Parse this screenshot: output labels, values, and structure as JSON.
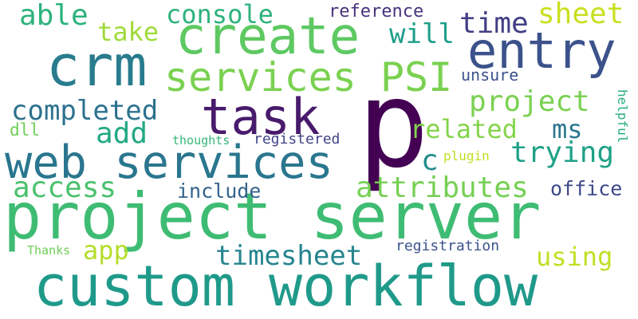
{
  "words": [
    {
      "text": "project server",
      "color": "#3fbc73"
    },
    {
      "text": "custom workflow",
      "color": "#1f9a8a"
    },
    {
      "text": "p",
      "color": "#440154"
    },
    {
      "text": "web services",
      "color": "#2a768e"
    },
    {
      "text": "task",
      "color": "#481a6c"
    },
    {
      "text": "create",
      "color": "#5ec962"
    },
    {
      "text": "crm",
      "color": "#287c8e"
    },
    {
      "text": "entry",
      "color": "#3b528b"
    },
    {
      "text": "services PSI",
      "color": "#7ad151"
    },
    {
      "text": "attributes",
      "color": "#75d054"
    },
    {
      "text": "completed",
      "color": "#2c728e"
    },
    {
      "text": "timesheet",
      "color": "#25858e"
    },
    {
      "text": "trying",
      "color": "#1fa187"
    },
    {
      "text": "related",
      "color": "#84d44b"
    },
    {
      "text": "project",
      "color": "#7ad151"
    },
    {
      "text": "access",
      "color": "#4ac16d"
    },
    {
      "text": "console",
      "color": "#2db27d"
    },
    {
      "text": "add",
      "color": "#22a884"
    },
    {
      "text": "able",
      "color": "#2db27d"
    },
    {
      "text": "take",
      "color": "#9fda3a"
    },
    {
      "text": "sheet",
      "color": "#c8e020"
    },
    {
      "text": "time",
      "color": "#433e85"
    },
    {
      "text": "will",
      "color": "#1f9e89"
    },
    {
      "text": "ms",
      "color": "#2a768e"
    },
    {
      "text": "c",
      "color": "#228c8d"
    },
    {
      "text": "office",
      "color": "#3e4989"
    },
    {
      "text": "using",
      "color": "#c2df23"
    },
    {
      "text": "app",
      "color": "#b5de2b"
    },
    {
      "text": "include",
      "color": "#33638d"
    },
    {
      "text": "reference",
      "color": "#46337e"
    },
    {
      "text": "unsure",
      "color": "#3b528b"
    },
    {
      "text": "dll",
      "color": "#6ece58"
    },
    {
      "text": "thoughts",
      "color": "#35b779"
    },
    {
      "text": "registered",
      "color": "#414487"
    },
    {
      "text": "plugin",
      "color": "#bddf26"
    },
    {
      "text": "helpful",
      "color": "#27ad81"
    },
    {
      "text": "registration",
      "color": "#3b528b"
    },
    {
      "text": "Thanks",
      "color": "#6ece58"
    }
  ]
}
